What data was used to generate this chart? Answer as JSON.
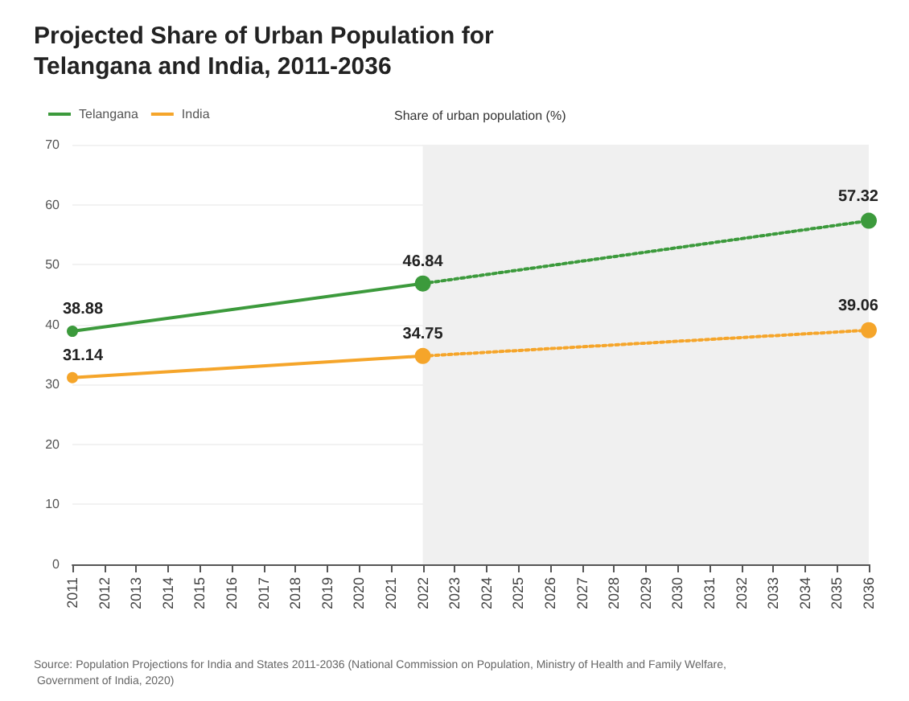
{
  "chart_data": {
    "type": "line",
    "title": "Projected Share of Urban Population for Telangana and India, 2011-2036",
    "ylabel": "Share of urban population (%)",
    "categories": [
      "2011",
      "2012",
      "2013",
      "2014",
      "2015",
      "2016",
      "2017",
      "2018",
      "2019",
      "2020",
      "2021",
      "2022",
      "2023",
      "2024",
      "2025",
      "2026",
      "2027",
      "2028",
      "2029",
      "2030",
      "2031",
      "2032",
      "2033",
      "2034",
      "2035",
      "2036"
    ],
    "series": [
      {
        "name": "Telangana",
        "color": "#3c9a3c",
        "line_style": "solid",
        "values": [
          38.88,
          null,
          null,
          null,
          null,
          null,
          null,
          null,
          null,
          null,
          null,
          46.84,
          null,
          null,
          null,
          null,
          null,
          null,
          null,
          null,
          null,
          null,
          null,
          null,
          null,
          null
        ],
        "value_labels": [
          "38.88",
          null,
          null,
          null,
          null,
          null,
          null,
          null,
          null,
          null,
          null,
          "46.84",
          null,
          null,
          null,
          null,
          null,
          null,
          null,
          null,
          null,
          null,
          null,
          null,
          null,
          null
        ]
      },
      {
        "color": "#3c9a3c",
        "line_style": "dotted",
        "values": [
          null,
          null,
          null,
          null,
          null,
          null,
          null,
          null,
          null,
          null,
          null,
          46.84,
          null,
          null,
          null,
          null,
          null,
          null,
          null,
          null,
          null,
          null,
          null,
          null,
          null,
          57.32
        ],
        "value_labels": [
          null,
          null,
          null,
          null,
          null,
          null,
          null,
          null,
          null,
          null,
          null,
          null,
          null,
          null,
          null,
          null,
          null,
          null,
          null,
          null,
          null,
          null,
          null,
          null,
          null,
          "57.32"
        ]
      },
      {
        "name": "India",
        "color": "#f5a52a",
        "line_style": "solid",
        "values": [
          31.14,
          null,
          null,
          null,
          null,
          null,
          null,
          null,
          null,
          null,
          null,
          34.75,
          null,
          null,
          null,
          null,
          null,
          null,
          null,
          null,
          null,
          null,
          null,
          null,
          null,
          null
        ],
        "value_labels": [
          "31.14",
          null,
          null,
          null,
          null,
          null,
          null,
          null,
          null,
          null,
          null,
          "34.75",
          null,
          null,
          null,
          null,
          null,
          null,
          null,
          null,
          null,
          null,
          null,
          null,
          null,
          null
        ]
      },
      {
        "color": "#f5a52a",
        "line_style": "dotted",
        "values": [
          null,
          null,
          null,
          null,
          null,
          null,
          null,
          null,
          null,
          null,
          null,
          34.75,
          null,
          null,
          null,
          null,
          null,
          null,
          null,
          null,
          null,
          null,
          null,
          null,
          null,
          39.06
        ],
        "value_labels": [
          null,
          null,
          null,
          null,
          null,
          null,
          null,
          null,
          null,
          null,
          null,
          null,
          null,
          null,
          null,
          null,
          null,
          null,
          null,
          null,
          null,
          null,
          null,
          null,
          null,
          "39.06"
        ]
      }
    ],
    "ylim": [
      0,
      70
    ],
    "yticks": [
      0,
      10,
      20,
      30,
      40,
      50,
      60,
      70
    ],
    "bands": [
      {
        "axis": "x",
        "from": "2022",
        "to": "2036",
        "color": "#f0f0f0"
      }
    ],
    "grid": "y",
    "legend": "top left",
    "marker": "circle",
    "annotations": [
      "Source: Population Projections for India and States 2011-2036 (National Commission on Population, Ministry of Health and Family Welfare, Government of India, 2020)"
    ]
  }
}
